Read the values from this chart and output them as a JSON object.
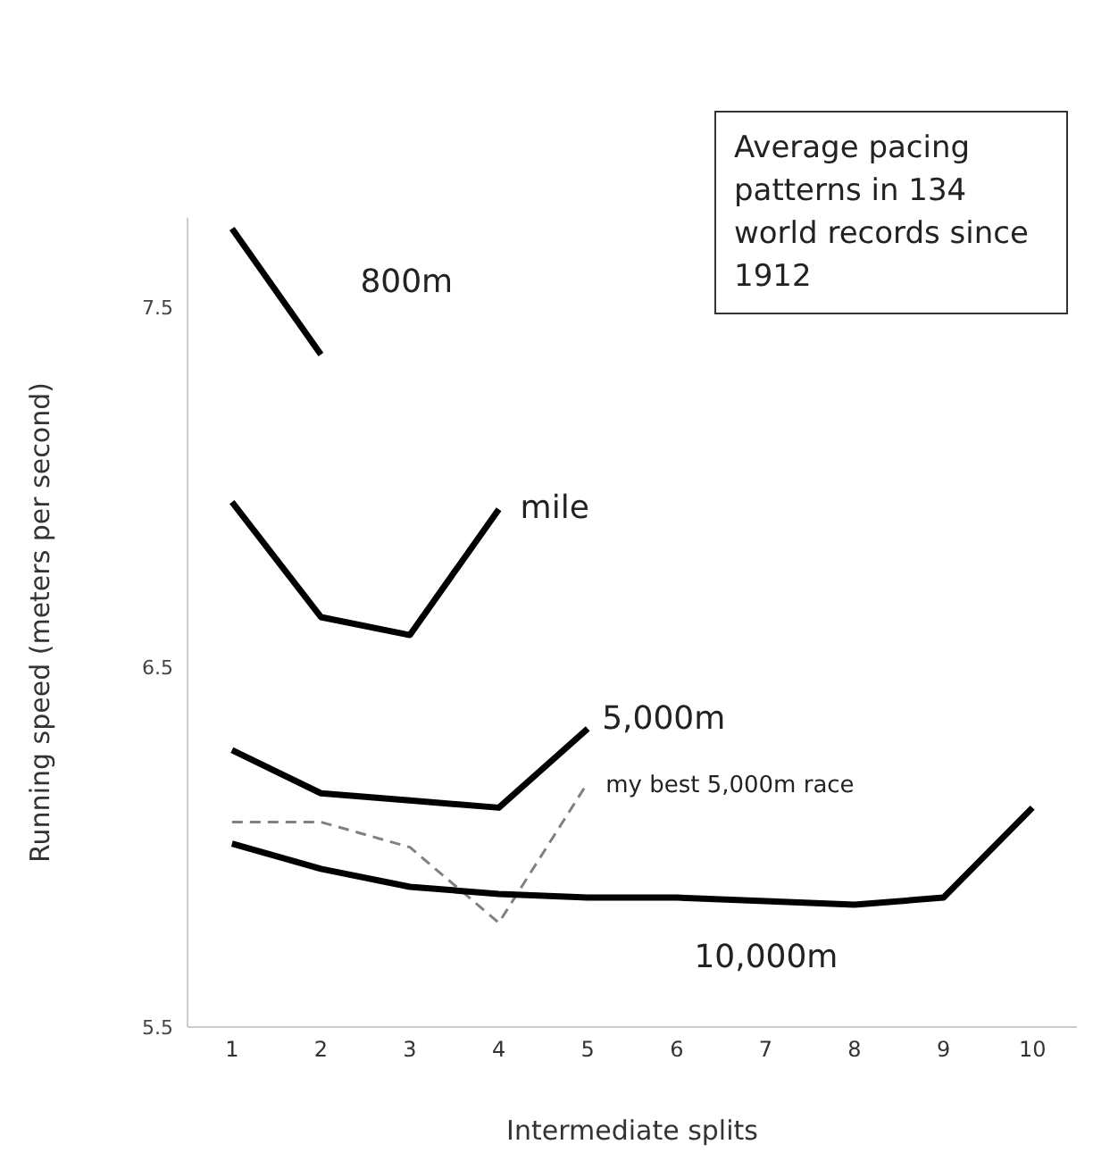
{
  "chart_data": {
    "type": "line",
    "title": "Average pacing patterns in 134 world records since 1912",
    "xlabel": "Intermediate splits",
    "ylabel": "Running speed (meters per second)",
    "xlim": [
      0.5,
      10.5
    ],
    "xticks": [
      1,
      2,
      3,
      4,
      5,
      6,
      7,
      8,
      9,
      10
    ],
    "ylim": [
      5.5,
      7.75
    ],
    "yticks": [
      5.5,
      6.5,
      7.5
    ],
    "grid": false,
    "legend": false,
    "marker": "none",
    "x": [
      1,
      2,
      3,
      4,
      5,
      6,
      7,
      8,
      9,
      10
    ],
    "series": [
      {
        "name": "800m",
        "color": "#000000",
        "values": [
          7.72,
          7.37,
          null,
          null,
          null,
          null,
          null,
          null,
          null,
          null
        ]
      },
      {
        "name": "mile",
        "color": "#000000",
        "values": [
          6.96,
          6.64,
          6.59,
          6.94,
          null,
          null,
          null,
          null,
          null,
          null
        ]
      },
      {
        "name": "5,000m",
        "color": "#000000",
        "values": [
          6.27,
          6.15,
          6.13,
          6.11,
          6.33,
          null,
          null,
          null,
          null,
          null
        ]
      },
      {
        "name": "my best 5,000m race",
        "color": "#808080",
        "line_style": "dashed",
        "values": [
          6.07,
          6.07,
          6.0,
          5.79,
          6.18,
          null,
          null,
          null,
          null,
          null
        ]
      },
      {
        "name": "10,000m",
        "color": "#000000",
        "values": [
          6.01,
          5.94,
          5.89,
          5.87,
          5.86,
          5.86,
          5.85,
          5.84,
          5.86,
          6.11
        ]
      }
    ]
  }
}
